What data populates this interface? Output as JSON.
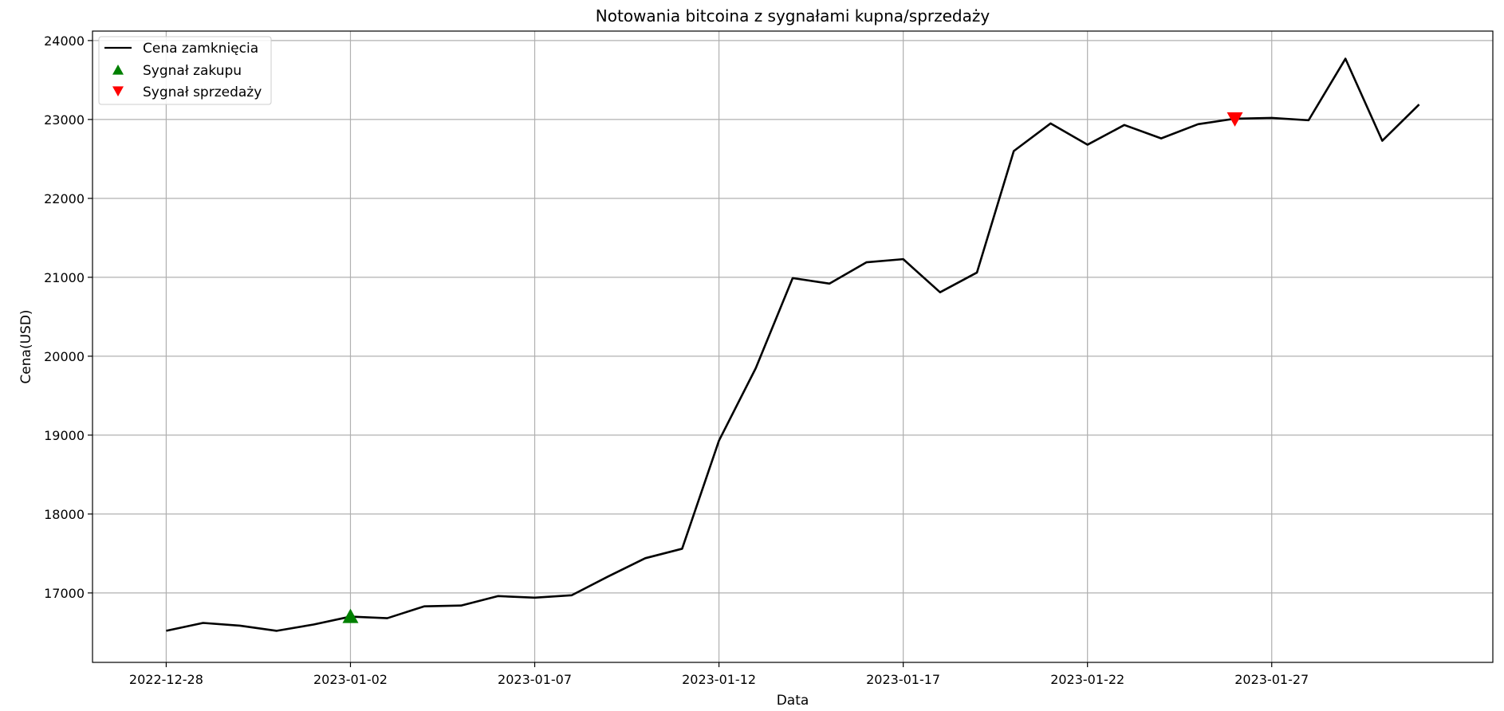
{
  "chart_data": {
    "type": "line",
    "title": "Notowania bitcoina z sygnałami kupna/sprzedaży",
    "xlabel": "Data",
    "ylabel": "Cena(USD)",
    "x": [
      "2022-12-28",
      "2022-12-29",
      "2022-12-30",
      "2022-12-31",
      "2023-01-01",
      "2023-01-02",
      "2023-01-03",
      "2023-01-04",
      "2023-01-05",
      "2023-01-06",
      "2023-01-07",
      "2023-01-08",
      "2023-01-09",
      "2023-01-10",
      "2023-01-11",
      "2023-01-12",
      "2023-01-13",
      "2023-01-14",
      "2023-01-15",
      "2023-01-16",
      "2023-01-17",
      "2023-01-18",
      "2023-01-19",
      "2023-01-20",
      "2023-01-21",
      "2023-01-22",
      "2023-01-23",
      "2023-01-24",
      "2023-01-25",
      "2023-01-26",
      "2023-01-27",
      "2023-01-28",
      "2023-01-29",
      "2023-01-30",
      "2023-01-31"
    ],
    "series": [
      {
        "name": "Cena zamknięcia",
        "color": "#000000",
        "values": [
          16520,
          16620,
          16585,
          16520,
          16600,
          16700,
          16680,
          16830,
          16840,
          16960,
          16940,
          16970,
          17210,
          17440,
          17560,
          18930,
          19850,
          20990,
          20920,
          21190,
          21230,
          20810,
          21060,
          22600,
          22950,
          22680,
          22930,
          22760,
          22940,
          23010,
          23020,
          22990,
          23770,
          22730,
          23190
        ]
      }
    ],
    "buy_signals": [
      {
        "label": "Sygnał zakupu",
        "color": "#008000",
        "points": [
          {
            "x": "2023-01-02",
            "y": 16700
          }
        ]
      }
    ],
    "sell_signals": [
      {
        "label": "Sygnał sprzedaży",
        "color": "#ff0000",
        "points": [
          {
            "x": "2023-01-26",
            "y": 23010
          }
        ]
      }
    ],
    "xticks": [
      "2022-12-28",
      "2023-01-02",
      "2023-01-07",
      "2023-01-12",
      "2023-01-17",
      "2023-01-22",
      "2023-01-27"
    ],
    "yticks": [
      17000,
      18000,
      19000,
      20000,
      21000,
      22000,
      23000,
      24000
    ],
    "ylim": [
      16120,
      24120
    ],
    "xlim": [
      "2022-12-26",
      "2023-02-02"
    ],
    "grid": true,
    "legend": "top-left"
  }
}
